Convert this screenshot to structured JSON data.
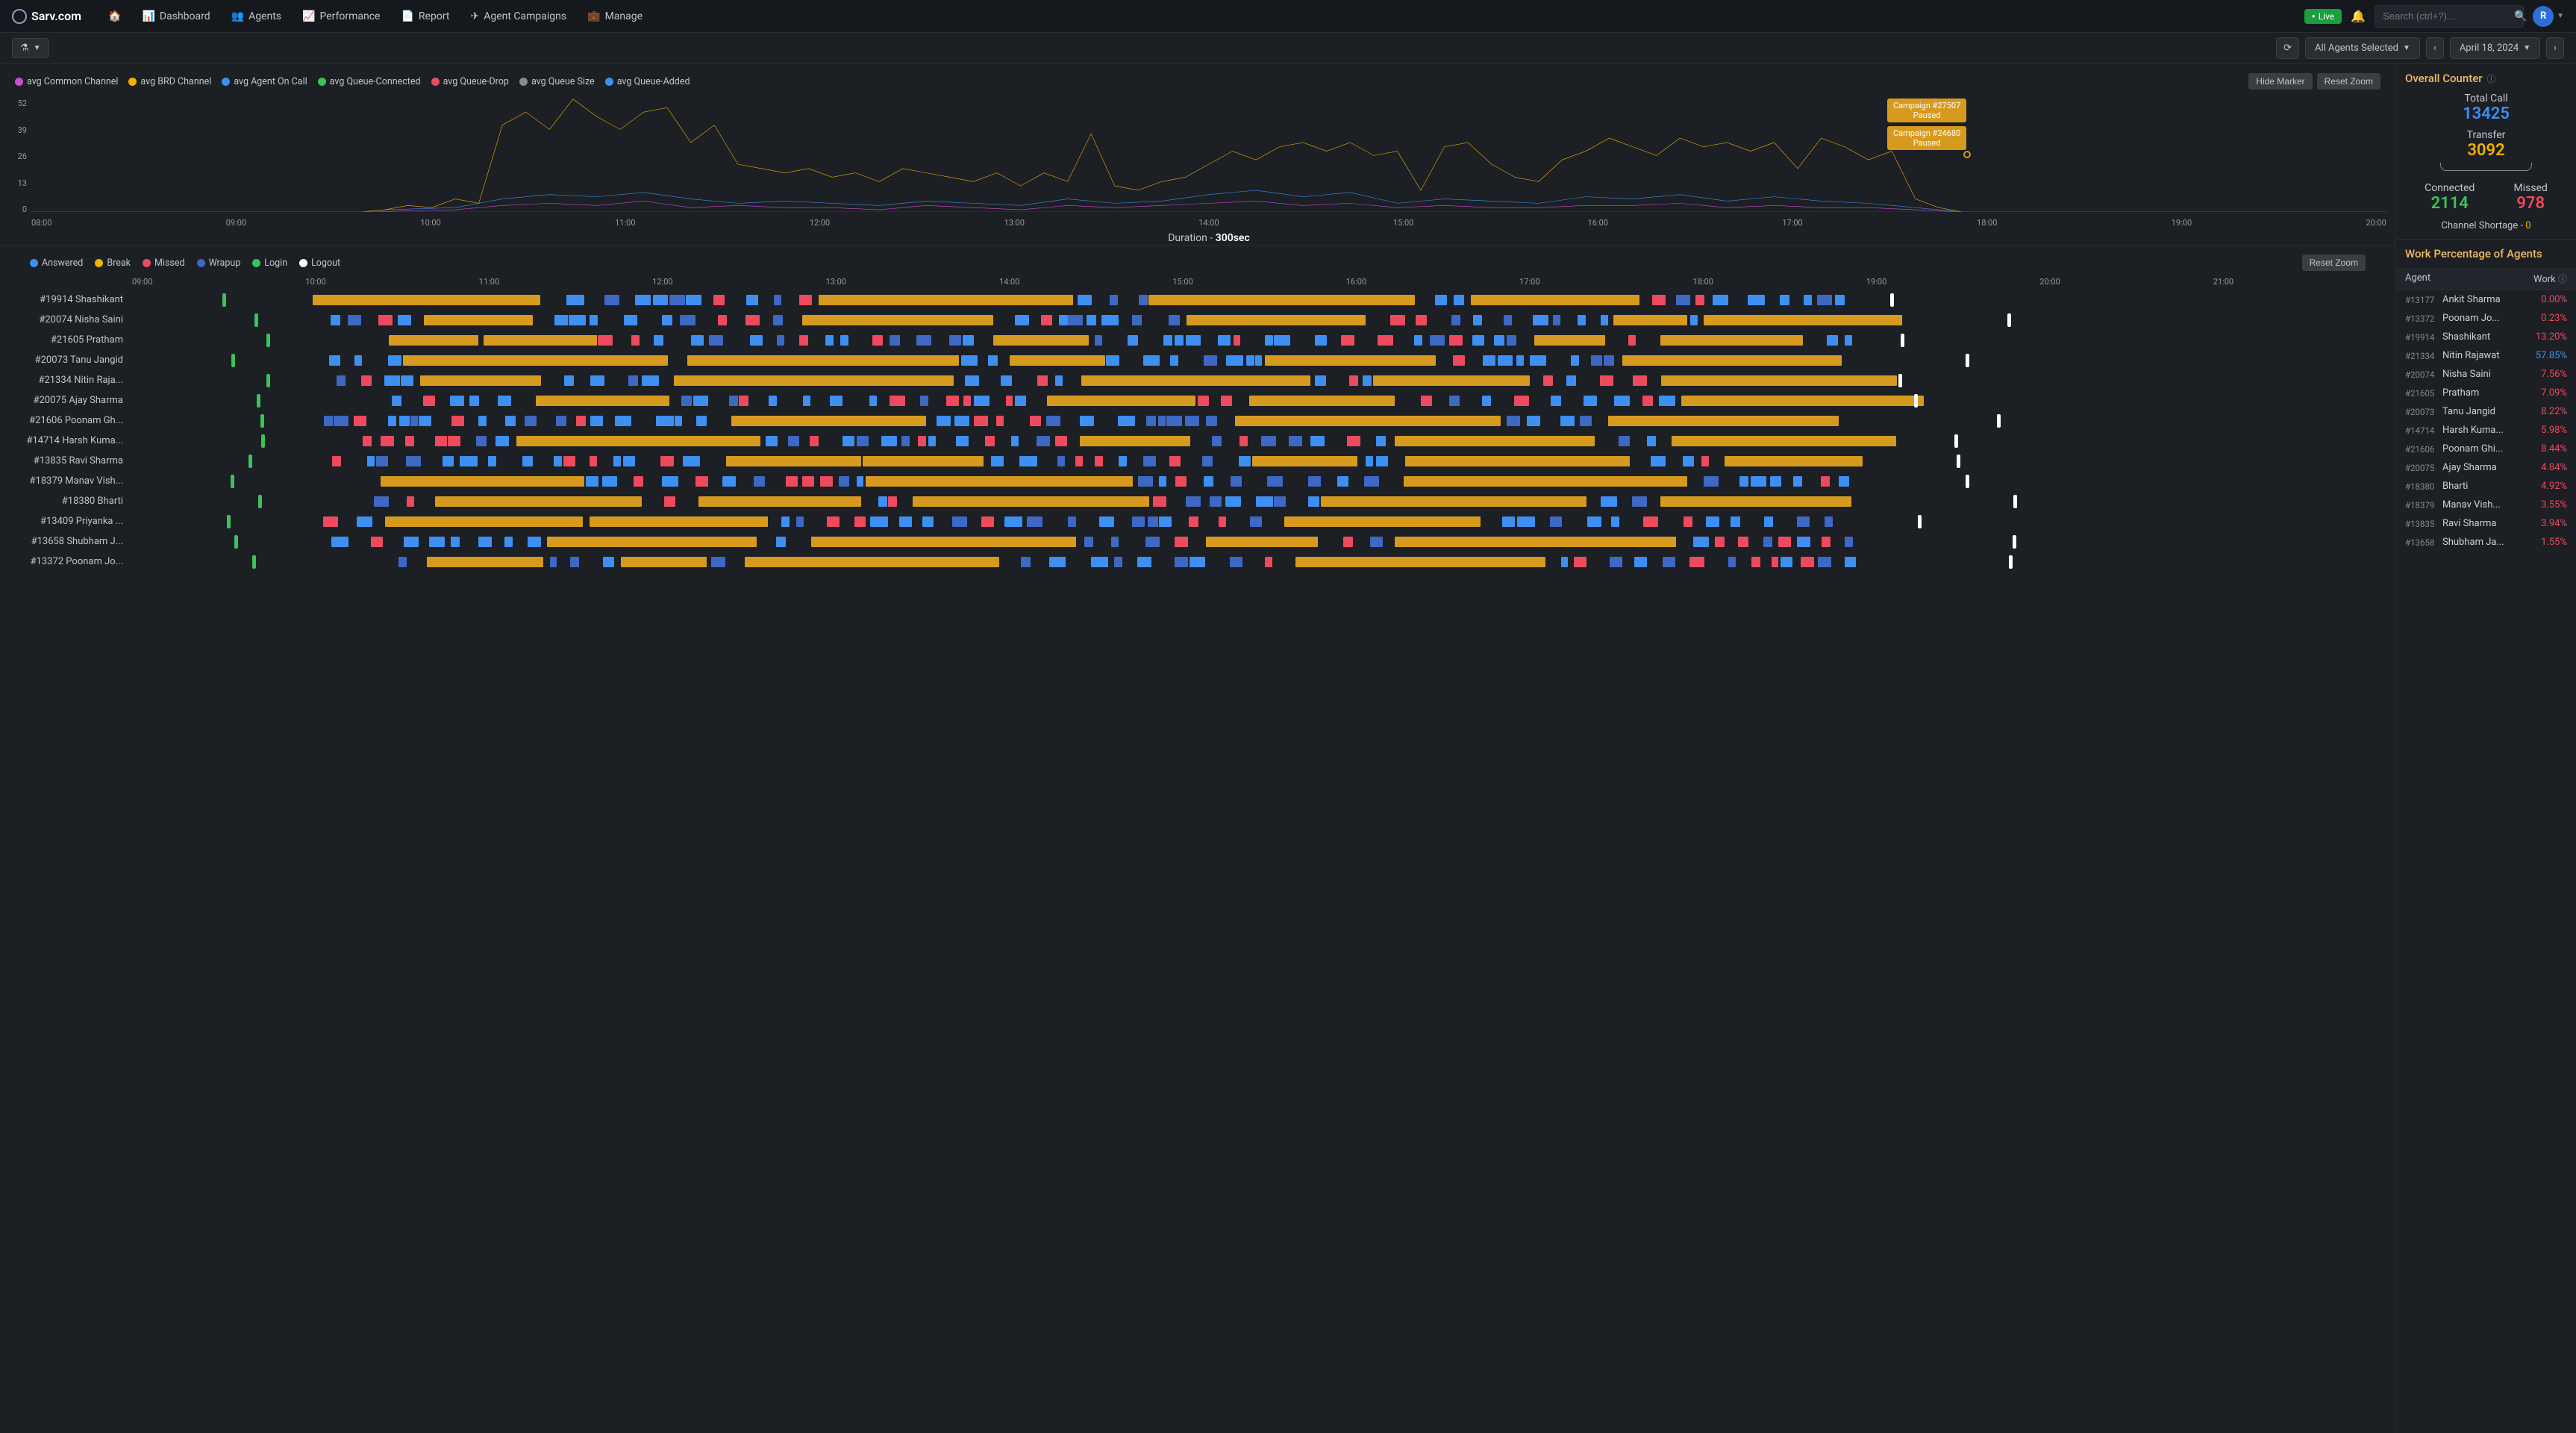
{
  "brand": "Sarv.com",
  "nav": [
    {
      "icon": "🏠",
      "label": ""
    },
    {
      "icon": "📊",
      "label": "Dashboard"
    },
    {
      "icon": "👥",
      "label": "Agents"
    },
    {
      "icon": "📈",
      "label": "Performance"
    },
    {
      "icon": "📄",
      "label": "Report"
    },
    {
      "icon": "✈",
      "label": "Agent Campaigns"
    },
    {
      "icon": "💼",
      "label": "Manage"
    }
  ],
  "live_label": "Live",
  "search_placeholder": "Search (ctrl+?)...",
  "avatar_letter": "R",
  "agents_selector": "All Agents Selected",
  "date_label": "April 18, 2024",
  "chart": {
    "legend": [
      {
        "label": "avg Common Channel",
        "color": "#c84fcf"
      },
      {
        "label": "avg BRD Channel",
        "color": "#f2b200"
      },
      {
        "label": "avg Agent On Call",
        "color": "#3d8ff2"
      },
      {
        "label": "avg Queue-Connected",
        "color": "#3dc25a"
      },
      {
        "label": "avg Queue-Drop",
        "color": "#ed4a5e"
      },
      {
        "label": "avg Queue Size",
        "color": "#8a8a8a"
      },
      {
        "label": "avg Queue-Added",
        "color": "#3d8ff2"
      }
    ],
    "hide_marker_label": "Hide Marker",
    "reset_zoom_label": "Reset Zoom",
    "y_ticks": [
      0,
      13,
      26,
      39,
      52
    ],
    "x_ticks": [
      "08:00",
      "09:00",
      "10:00",
      "11:00",
      "12:00",
      "13:00",
      "14:00",
      "15:00",
      "16:00",
      "17:00",
      "18:00",
      "19:00",
      "20:00"
    ],
    "subtitle_prefix": "Duration - ",
    "subtitle_value": "300sec",
    "markers": [
      {
        "text1": "Campaign #27507",
        "text2": "Paused",
        "top": 8,
        "left_pct": 79
      },
      {
        "text1": "Campaign #24680",
        "text2": "Paused",
        "top": 45,
        "left_pct": 79
      }
    ],
    "series": {
      "brd": {
        "color": "#f2b200",
        "points": [
          [
            0,
            0
          ],
          [
            14,
            0
          ],
          [
            15,
            1
          ],
          [
            16,
            3
          ],
          [
            17,
            2
          ],
          [
            18,
            6
          ],
          [
            19,
            4
          ],
          [
            20,
            40
          ],
          [
            21,
            46
          ],
          [
            22,
            38
          ],
          [
            23,
            52
          ],
          [
            24,
            44
          ],
          [
            25,
            38
          ],
          [
            26,
            46
          ],
          [
            27,
            48
          ],
          [
            28,
            32
          ],
          [
            29,
            40
          ],
          [
            30,
            22
          ],
          [
            31,
            20
          ],
          [
            32,
            18
          ],
          [
            33,
            20
          ],
          [
            34,
            16
          ],
          [
            35,
            18
          ],
          [
            36,
            14
          ],
          [
            37,
            20
          ],
          [
            38,
            18
          ],
          [
            39,
            16
          ],
          [
            40,
            14
          ],
          [
            41,
            18
          ],
          [
            42,
            12
          ],
          [
            43,
            18
          ],
          [
            44,
            14
          ],
          [
            45,
            36
          ],
          [
            46,
            12
          ],
          [
            47,
            10
          ],
          [
            48,
            14
          ],
          [
            49,
            16
          ],
          [
            50,
            22
          ],
          [
            51,
            28
          ],
          [
            52,
            24
          ],
          [
            53,
            30
          ],
          [
            54,
            32
          ],
          [
            55,
            28
          ],
          [
            56,
            32
          ],
          [
            57,
            26
          ],
          [
            58,
            28
          ],
          [
            59,
            10
          ],
          [
            60,
            30
          ],
          [
            61,
            32
          ],
          [
            62,
            22
          ],
          [
            63,
            16
          ],
          [
            64,
            14
          ],
          [
            65,
            24
          ],
          [
            66,
            28
          ],
          [
            67,
            34
          ],
          [
            68,
            30
          ],
          [
            69,
            26
          ],
          [
            70,
            34
          ],
          [
            71,
            30
          ],
          [
            72,
            32
          ],
          [
            73,
            28
          ],
          [
            74,
            32
          ],
          [
            75,
            20
          ],
          [
            76,
            34
          ],
          [
            77,
            30
          ],
          [
            78,
            24
          ],
          [
            79,
            28
          ],
          [
            80,
            6
          ],
          [
            81,
            2
          ],
          [
            82,
            0
          ],
          [
            100,
            0
          ]
        ]
      },
      "agent": {
        "color": "#3d8ff2",
        "points": [
          [
            0,
            0
          ],
          [
            14,
            0
          ],
          [
            15,
            1
          ],
          [
            18,
            2
          ],
          [
            20,
            6
          ],
          [
            22,
            8
          ],
          [
            24,
            7
          ],
          [
            26,
            9
          ],
          [
            28,
            6
          ],
          [
            30,
            4
          ],
          [
            32,
            5
          ],
          [
            34,
            4
          ],
          [
            36,
            3
          ],
          [
            38,
            5
          ],
          [
            40,
            4
          ],
          [
            42,
            3
          ],
          [
            44,
            6
          ],
          [
            46,
            4
          ],
          [
            48,
            5
          ],
          [
            50,
            8
          ],
          [
            52,
            10
          ],
          [
            54,
            7
          ],
          [
            56,
            9
          ],
          [
            58,
            4
          ],
          [
            60,
            6
          ],
          [
            62,
            5
          ],
          [
            64,
            4
          ],
          [
            66,
            7
          ],
          [
            68,
            6
          ],
          [
            70,
            8
          ],
          [
            72,
            5
          ],
          [
            74,
            7
          ],
          [
            76,
            5
          ],
          [
            78,
            4
          ],
          [
            80,
            2
          ],
          [
            82,
            0
          ],
          [
            100,
            0
          ]
        ]
      },
      "common": {
        "color": "#c84fcf",
        "points": [
          [
            0,
            0
          ],
          [
            14,
            0
          ],
          [
            18,
            1
          ],
          [
            20,
            3
          ],
          [
            22,
            4
          ],
          [
            24,
            3
          ],
          [
            26,
            5
          ],
          [
            28,
            2
          ],
          [
            30,
            3
          ],
          [
            32,
            2
          ],
          [
            34,
            2
          ],
          [
            36,
            1
          ],
          [
            38,
            3
          ],
          [
            40,
            2
          ],
          [
            42,
            1
          ],
          [
            44,
            3
          ],
          [
            46,
            2
          ],
          [
            48,
            3
          ],
          [
            50,
            4
          ],
          [
            52,
            5
          ],
          [
            54,
            3
          ],
          [
            56,
            4
          ],
          [
            58,
            2
          ],
          [
            60,
            3
          ],
          [
            62,
            2
          ],
          [
            64,
            2
          ],
          [
            66,
            3
          ],
          [
            68,
            3
          ],
          [
            70,
            4
          ],
          [
            72,
            2
          ],
          [
            74,
            3
          ],
          [
            76,
            2
          ],
          [
            78,
            2
          ],
          [
            80,
            1
          ],
          [
            82,
            0
          ],
          [
            100,
            0
          ]
        ]
      }
    }
  },
  "gantt": {
    "legend": [
      {
        "label": "Answered",
        "color": "#3d8ff2"
      },
      {
        "label": "Break",
        "color": "#f2b200"
      },
      {
        "label": "Missed",
        "color": "#ed4a5e"
      },
      {
        "label": "Wrapup",
        "color": "#3d68c4"
      },
      {
        "label": "Login",
        "color": "#3dc25a"
      },
      {
        "label": "Logout",
        "color": "#ffffff"
      }
    ],
    "reset_zoom_label": "Reset Zoom",
    "x_ticks": [
      "09:00",
      "10:00",
      "11:00",
      "12:00",
      "13:00",
      "14:00",
      "15:00",
      "16:00",
      "17:00",
      "18:00",
      "19:00",
      "20:00",
      "21:00"
    ],
    "rows": [
      {
        "id": "#19914",
        "name": "Shashikant"
      },
      {
        "id": "#20074",
        "name": "Nisha Saini"
      },
      {
        "id": "#21605",
        "name": "Pratham"
      },
      {
        "id": "#20073",
        "name": "Tanu Jangid"
      },
      {
        "id": "#21334",
        "name": "Nitin Raja..."
      },
      {
        "id": "#20075",
        "name": "Ajay Sharma"
      },
      {
        "id": "#21606",
        "name": "Poonam Gh..."
      },
      {
        "id": "#14714",
        "name": "Harsh Kuma..."
      },
      {
        "id": "#13835",
        "name": "Ravi Sharma"
      },
      {
        "id": "#18379",
        "name": "Manav Vish..."
      },
      {
        "id": "#18380",
        "name": "Bharti"
      },
      {
        "id": "#13409",
        "name": "Priyanka ..."
      },
      {
        "id": "#13658",
        "name": "Shubham J..."
      },
      {
        "id": "#13372",
        "name": "Poonam Jo..."
      }
    ],
    "colors": {
      "answered": "#3d8ff2",
      "break": "#d69a1f",
      "missed": "#ed4a5e",
      "wrapup": "#3d68c4",
      "login": "#3dc25a",
      "logout": "#ffffff"
    }
  },
  "counter": {
    "title": "Overall Counter",
    "total_call_label": "Total Call",
    "total_call": "13425",
    "transfer_label": "Transfer",
    "transfer": "3092",
    "connected_label": "Connected",
    "connected": "2114",
    "missed_label": "Missed",
    "missed": "978",
    "channel_shortage_label": "Channel Shortage - ",
    "channel_shortage": "0"
  },
  "work": {
    "title": "Work Percentage of Agents",
    "col_agent": "Agent",
    "col_work": "Work",
    "rows": [
      {
        "id": "#13177",
        "name": "Ankit Sharma",
        "pct": "0.00%",
        "color": "#ed4a5e"
      },
      {
        "id": "#13372",
        "name": "Poonam Jo...",
        "pct": "0.23%",
        "color": "#ed4a5e"
      },
      {
        "id": "#19914",
        "name": "Shashikant",
        "pct": "13.20%",
        "color": "#ed4a5e"
      },
      {
        "id": "#21334",
        "name": "Nitin Rajawat",
        "pct": "57.85%",
        "color": "#3d8ff2"
      },
      {
        "id": "#20074",
        "name": "Nisha Saini",
        "pct": "7.56%",
        "color": "#ed4a5e"
      },
      {
        "id": "#21605",
        "name": "Pratham",
        "pct": "7.09%",
        "color": "#ed4a5e"
      },
      {
        "id": "#20073",
        "name": "Tanu Jangid",
        "pct": "8.22%",
        "color": "#ed4a5e"
      },
      {
        "id": "#14714",
        "name": "Harsh Kuma...",
        "pct": "5.98%",
        "color": "#ed4a5e"
      },
      {
        "id": "#21606",
        "name": "Poonam Ghi...",
        "pct": "8.44%",
        "color": "#ed4a5e"
      },
      {
        "id": "#20075",
        "name": "Ajay Sharma",
        "pct": "4.84%",
        "color": "#ed4a5e"
      },
      {
        "id": "#18380",
        "name": "Bharti",
        "pct": "4.92%",
        "color": "#ed4a5e"
      },
      {
        "id": "#18379",
        "name": "Manav Vish...",
        "pct": "3.55%",
        "color": "#ed4a5e"
      },
      {
        "id": "#13835",
        "name": "Ravi Sharma",
        "pct": "3.94%",
        "color": "#ed4a5e"
      },
      {
        "id": "#13658",
        "name": "Shubham Ja...",
        "pct": "1.55%",
        "color": "#ed4a5e"
      }
    ]
  }
}
